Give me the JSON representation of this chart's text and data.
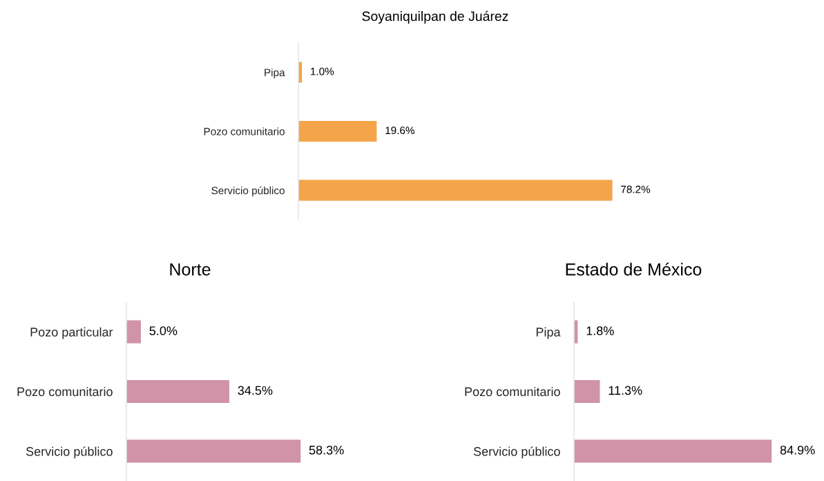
{
  "chart_data": [
    {
      "type": "bar",
      "orientation": "horizontal",
      "title": "Soyaniquilpan de Juárez",
      "categories": [
        "Pipa",
        "Pozo comunitario",
        "Servicio público"
      ],
      "tick_labels": "y",
      "series": [
        {
          "color": "#f4a54a",
          "values": [
            1.0,
            19.6,
            78.2
          ],
          "value_labels": [
            "1.0%",
            "19.6%",
            "78.2%"
          ]
        }
      ]
    },
    {
      "type": "bar",
      "orientation": "horizontal",
      "title": "Norte",
      "categories": [
        "Pozo particular",
        "Pozo comunitario",
        "Servicio público"
      ],
      "tick_labels": "y",
      "series": [
        {
          "color": "#d093a7",
          "values": [
            5.0,
            34.5,
            58.3
          ],
          "value_labels": [
            "5.0%",
            "34.5%",
            "58.3%"
          ]
        }
      ]
    },
    {
      "type": "bar",
      "orientation": "horizontal",
      "title": "Estado de México",
      "categories": [
        "Pipa",
        "Pozo comunitario",
        "Servicio público"
      ],
      "tick_labels": "y",
      "series": [
        {
          "color": "#d093a7",
          "values": [
            1.8,
            11.3,
            84.9
          ],
          "value_labels": [
            "1.8%",
            "11.3%",
            "84.9%"
          ]
        }
      ]
    }
  ]
}
